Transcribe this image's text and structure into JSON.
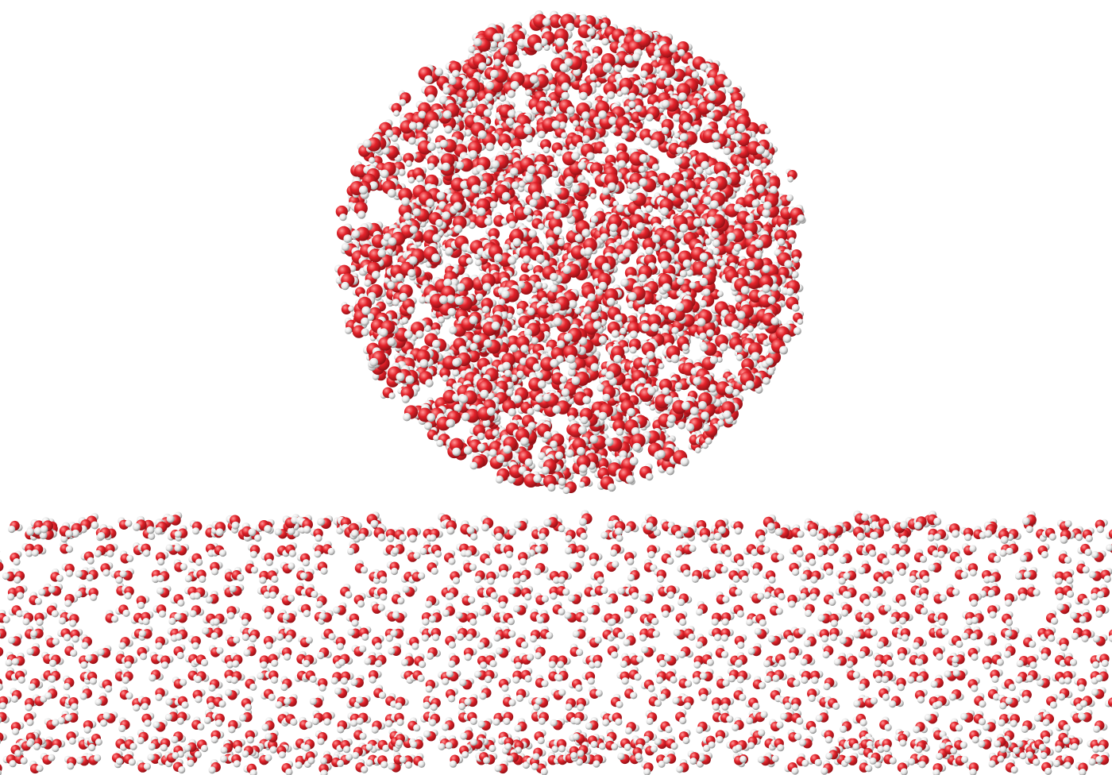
{
  "scene": {
    "description_visible_text": "",
    "colors": {
      "background": "#ffffff",
      "oxygen": "#e3222a",
      "oxygen_dark": "#8f1015",
      "oxygen_highlight": "#ff9a9a",
      "hydrogen": "#e6e6e6",
      "hydrogen_dark": "#8c8c8c",
      "hydrogen_highlight": "#ffffff"
    },
    "components": [
      {
        "name": "water-droplet",
        "kind": "amorphous-cluster",
        "molecule": "H2O"
      },
      {
        "name": "ice-slab",
        "kind": "hexagonal-lattice",
        "molecule": "H2O"
      }
    ]
  }
}
